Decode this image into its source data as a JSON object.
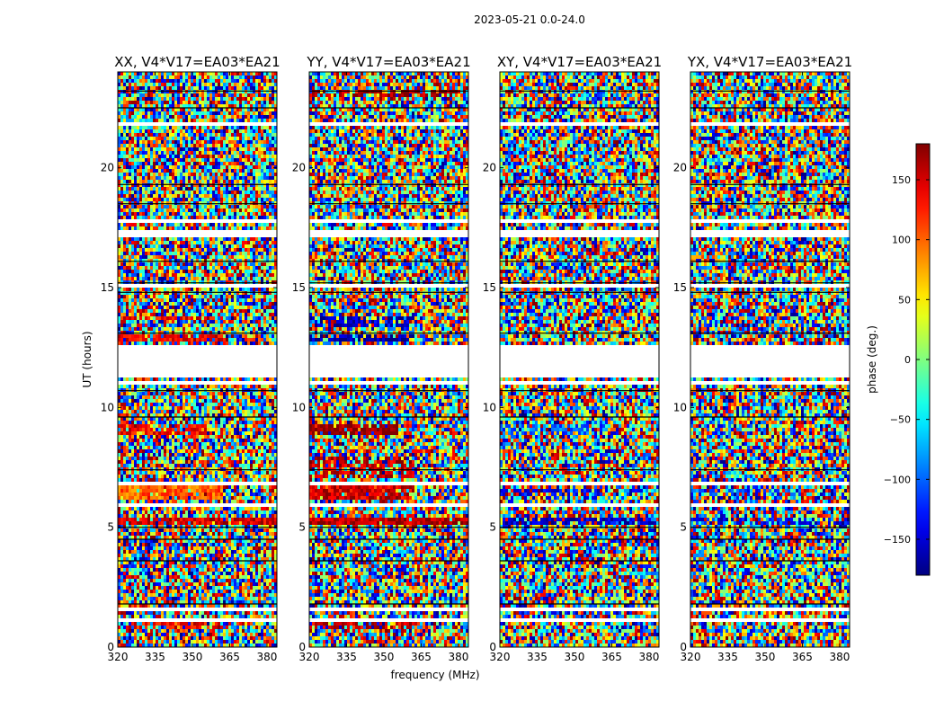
{
  "suptitle": "2023-05-21 0.0-24.0",
  "chart_data": {
    "type": "heatmap",
    "title": "2023-05-21 0.0-24.0",
    "xlabel": "frequency (MHz)",
    "ylabel": "UT (hours)",
    "xlim": [
      320,
      384
    ],
    "ylim": [
      0,
      24
    ],
    "xticks": [
      320,
      335,
      350,
      365,
      380
    ],
    "yticks": [
      0,
      5,
      10,
      15,
      20
    ],
    "panels": [
      {
        "title": "XX, V4*V17=EA03*EA21",
        "bias": [
          {
            "y0": 0.8,
            "y1": 1.0,
            "x1": 362,
            "hue": 140,
            "strength": 0.45
          },
          {
            "y0": 5.1,
            "y1": 5.4,
            "x1": 384,
            "hue": 150,
            "strength": 0.9
          },
          {
            "y0": 6.2,
            "y1": 6.7,
            "x1": 362,
            "hue": 100,
            "strength": 0.9
          },
          {
            "y0": 8.8,
            "y1": 9.3,
            "x1": 356,
            "hue": 135,
            "strength": 0.7
          },
          {
            "y0": 12.7,
            "y1": 13.0,
            "x1": 362,
            "hue": 140,
            "strength": 0.7
          },
          {
            "y0": 13.6,
            "y1": 13.8,
            "x1": 362,
            "hue": 140,
            "strength": 0.55
          }
        ]
      },
      {
        "title": "YY, V4*V17=EA03*EA21",
        "bias": [
          {
            "y0": 0.8,
            "y1": 1.0,
            "x1": 362,
            "hue": 150,
            "strength": 0.6
          },
          {
            "y0": 5.1,
            "y1": 5.4,
            "x1": 384,
            "hue": 160,
            "strength": 0.95
          },
          {
            "y0": 6.2,
            "y1": 6.9,
            "x1": 362,
            "hue": 150,
            "strength": 0.9
          },
          {
            "y0": 7.0,
            "y1": 8.0,
            "x1": 362,
            "hue": 155,
            "strength": 0.5
          },
          {
            "y0": 8.8,
            "y1": 9.3,
            "x1": 356,
            "hue": 175,
            "strength": 0.8
          },
          {
            "y0": 12.7,
            "y1": 13.0,
            "x1": 362,
            "hue": -170,
            "strength": 0.6
          },
          {
            "y0": 13.4,
            "y1": 13.8,
            "x1": 362,
            "hue": -160,
            "strength": 0.55
          },
          {
            "y0": 23.0,
            "y1": 23.3,
            "x1": 384,
            "hue": 170,
            "strength": 0.5
          }
        ]
      },
      {
        "title": "XY, V4*V17=EA03*EA21",
        "bias": [
          {
            "y0": 5.1,
            "y1": 5.4,
            "x1": 384,
            "hue": -150,
            "strength": 0.7
          },
          {
            "y0": 6.3,
            "y1": 6.6,
            "x1": 362,
            "hue": -140,
            "strength": 0.5
          },
          {
            "y0": 8.8,
            "y1": 9.3,
            "x1": 356,
            "hue": -100,
            "strength": 0.5
          }
        ]
      },
      {
        "title": "YX, V4*V17=EA03*EA21",
        "bias": [
          {
            "y0": 5.1,
            "y1": 5.4,
            "x1": 384,
            "hue": -140,
            "strength": 0.5
          },
          {
            "y0": 6.3,
            "y1": 6.6,
            "x1": 362,
            "hue": -120,
            "strength": 0.4
          }
        ]
      }
    ],
    "flagged_ut_ranges": [
      [
        1.1,
        1.25
      ],
      [
        1.55,
        1.65
      ],
      [
        2.95,
        3.05
      ],
      [
        5.85,
        6.0
      ],
      [
        6.75,
        6.9
      ],
      [
        10.95,
        11.05
      ],
      [
        11.2,
        12.65
      ],
      [
        15.0,
        15.1
      ],
      [
        17.15,
        17.35
      ],
      [
        17.75,
        17.85
      ],
      [
        19.9,
        20.0
      ],
      [
        21.8,
        21.95
      ]
    ],
    "black_ut_lines": [
      1.8,
      3.6,
      4.5,
      5.0,
      7.4,
      9.6,
      10.7,
      13.1,
      14.8,
      15.2,
      16.1,
      18.5,
      19.3,
      22.5,
      23.2
    ],
    "colorbar": {
      "label": "phase (deg.)",
      "range": [
        -180,
        180
      ],
      "ticks": [
        150,
        100,
        50,
        0,
        -50,
        -100,
        -150
      ],
      "tick_labels": [
        "150",
        "100",
        "50",
        "0",
        "−50",
        "−100",
        "−150"
      ],
      "colormap": "jet"
    }
  }
}
